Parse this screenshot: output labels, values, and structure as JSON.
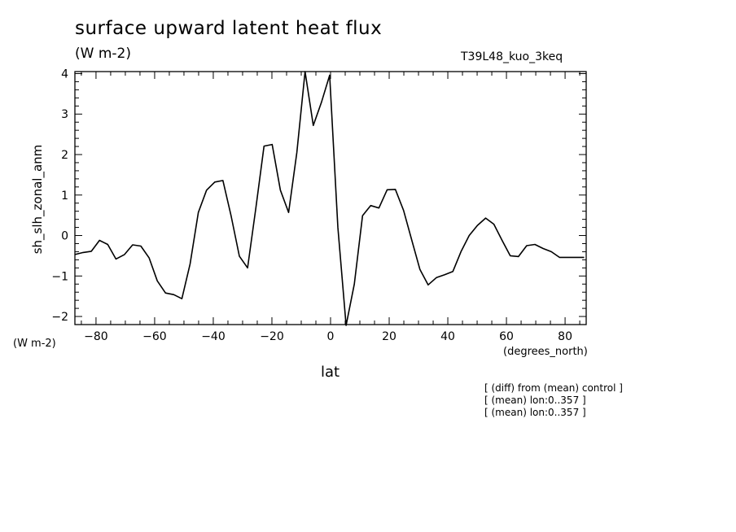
{
  "chart_data": {
    "type": "line",
    "title": "surface upward latent heat flux",
    "units": "(W m-2)",
    "run_label": "T39L48_kuo_3keq",
    "ylabel": "sh_slh_zonal_anm",
    "y_units": "(W m-2)",
    "xlabel": "lat",
    "x_units": "(degrees_north)",
    "xlim": [
      -87.2,
      87.2
    ],
    "ylim": [
      -2.2,
      4.05
    ],
    "x_ticks": [
      -80,
      -60,
      -40,
      -20,
      0,
      20,
      40,
      60,
      80
    ],
    "x_tick_labels": [
      "−80",
      "−60",
      "−40",
      "−20",
      "0",
      "20",
      "40",
      "60",
      "80"
    ],
    "y_ticks": [
      -2,
      -1,
      0,
      1,
      2,
      3,
      4
    ],
    "y_tick_labels": [
      "−2",
      "−1",
      "0",
      "1",
      "2",
      "3",
      "4"
    ],
    "grid": false,
    "series": [
      {
        "color": "#000000",
        "x": [
          -87.2,
          -84.4,
          -81.6,
          -78.8,
          -76.0,
          -73.2,
          -70.3,
          -67.5,
          -64.7,
          -61.9,
          -59.1,
          -56.3,
          -53.5,
          -50.7,
          -47.9,
          -45.1,
          -42.3,
          -39.5,
          -36.7,
          -33.9,
          -31.1,
          -28.3,
          -25.5,
          -22.7,
          -19.9,
          -17.1,
          -14.3,
          -11.5,
          -8.7,
          -5.9,
          -3.1,
          -0.3,
          2.5,
          5.3,
          8.1,
          10.9,
          13.7,
          16.5,
          19.3,
          22.1,
          24.9,
          27.7,
          30.5,
          33.3,
          36.1,
          38.9,
          41.7,
          44.5,
          47.3,
          50.1,
          52.9,
          55.7,
          58.5,
          61.3,
          64.1,
          66.9,
          69.7,
          72.5,
          75.3,
          78.1,
          80.9,
          83.7,
          86.5
        ],
        "y": [
          -0.47,
          -0.42,
          -0.39,
          -0.12,
          -0.22,
          -0.58,
          -0.47,
          -0.23,
          -0.26,
          -0.55,
          -1.12,
          -1.42,
          -1.46,
          -1.56,
          -0.7,
          0.57,
          1.12,
          1.32,
          1.36,
          0.48,
          -0.51,
          -0.8,
          0.67,
          2.21,
          2.25,
          1.12,
          0.57,
          2.05,
          4.05,
          2.72,
          3.29,
          3.96,
          0.2,
          -2.22,
          -1.2,
          0.49,
          0.74,
          0.68,
          1.13,
          1.14,
          0.62,
          -0.11,
          -0.84,
          -1.22,
          -1.04,
          -0.97,
          -0.89,
          -0.4,
          0.0,
          0.25,
          0.43,
          0.28,
          -0.12,
          -0.5,
          -0.52,
          -0.25,
          -0.22,
          -0.32,
          -0.4,
          -0.54,
          -0.54,
          -0.54,
          -0.54
        ]
      }
    ],
    "annotations": [
      "[ (diff) from (mean) control ]",
      "[ (mean) lon:0..357 ]",
      "[ (mean) lon:0..357 ]"
    ]
  }
}
